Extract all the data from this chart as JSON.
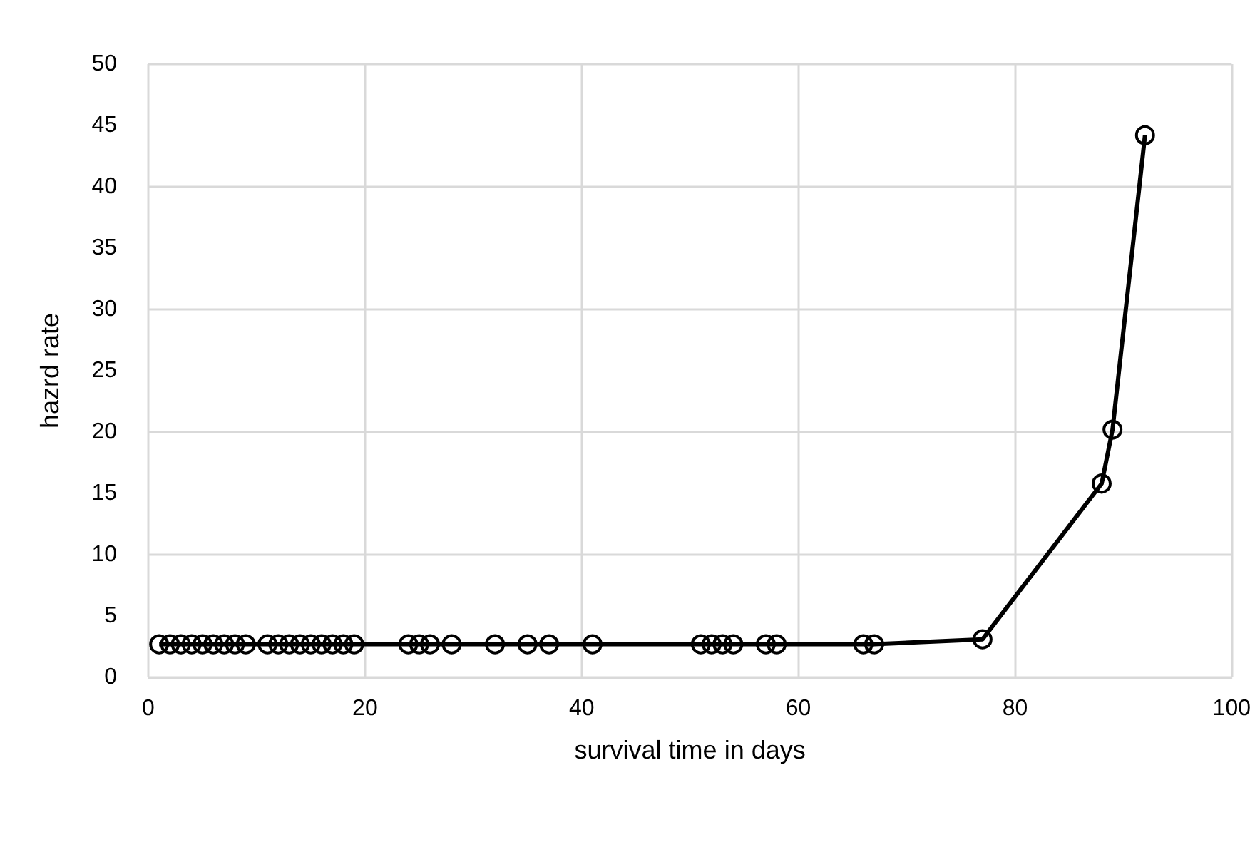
{
  "chart_data": {
    "type": "line",
    "xlabel": "survival time in days",
    "ylabel": "hazrd rate",
    "x": [
      1,
      2,
      3,
      4,
      5,
      6,
      7,
      8,
      9,
      11,
      12,
      13,
      14,
      15,
      16,
      17,
      18,
      19,
      24,
      25,
      26,
      28,
      32,
      35,
      37,
      41,
      51,
      52,
      53,
      54,
      57,
      58,
      66,
      67,
      77,
      88,
      89,
      92
    ],
    "values": [
      2.7,
      2.7,
      2.7,
      2.7,
      2.7,
      2.7,
      2.7,
      2.7,
      2.7,
      2.7,
      2.7,
      2.7,
      2.7,
      2.7,
      2.7,
      2.7,
      2.7,
      2.7,
      2.7,
      2.7,
      2.7,
      2.7,
      2.7,
      2.7,
      2.7,
      2.7,
      2.7,
      2.7,
      2.7,
      2.7,
      2.7,
      2.7,
      2.7,
      2.7,
      3.1,
      15.8,
      20.2,
      44.2
    ],
    "color": "#000000",
    "marker": "circle",
    "line_style": "solid",
    "grid": true,
    "xlim": [
      0,
      100
    ],
    "xticks": [
      0,
      20,
      40,
      60,
      80,
      100
    ],
    "ylim": [
      0,
      50
    ],
    "yticks": [
      0,
      5,
      10,
      15,
      20,
      25,
      30,
      35,
      40,
      45,
      50
    ]
  }
}
